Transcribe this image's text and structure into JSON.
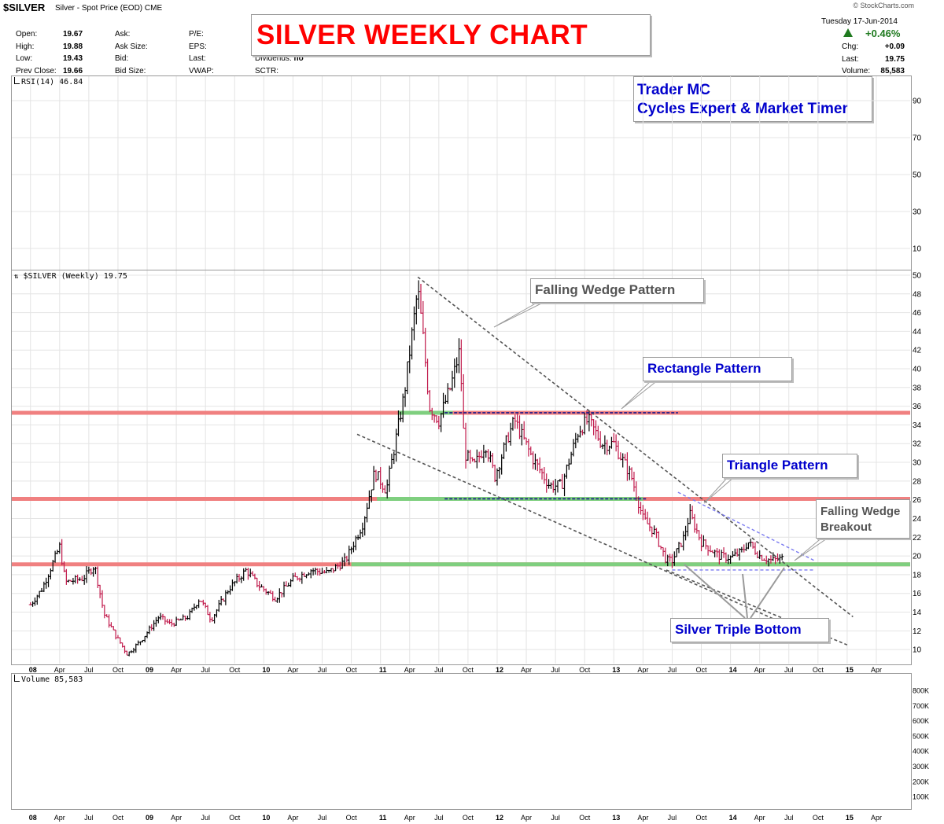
{
  "header": {
    "symbol": "$SILVER",
    "description": "Silver - Spot Price (EOD)",
    "exchange": "CME",
    "stats": [
      {
        "label": "Open:",
        "value": "19.67"
      },
      {
        "label": "High:",
        "value": "19.88"
      },
      {
        "label": "Low:",
        "value": "19.43"
      },
      {
        "label": "Prev Close:",
        "value": "19.66"
      }
    ],
    "stats2": [
      "Ask:",
      "Ask Size:",
      "Bid:",
      "Bid Size:"
    ],
    "stats3": [
      "P/E:",
      "EPS:",
      "Last:",
      "VWAP:"
    ],
    "stats4": [
      {
        "label": "Dividends:",
        "value": "no"
      },
      {
        "label": "SCTR:",
        "value": ""
      }
    ],
    "brand": "© StockCharts.com",
    "date": "Tuesday  17-Jun-2014",
    "change_pct": "+0.46%",
    "right_stats": [
      {
        "label": "Chg:",
        "value": "+0.09"
      },
      {
        "label": "Last:",
        "value": "19.75"
      },
      {
        "label": "Volume:",
        "value": "85,583"
      }
    ]
  },
  "big_title": "SILVER WEEKLY CHART",
  "author": {
    "line1": "Trader MC",
    "line2": "Cycles Expert & Market Timer"
  },
  "rsi_panel": {
    "label": "RSI(14) 46.84",
    "ticks": [
      "90",
      "70",
      "50",
      "30",
      "10"
    ]
  },
  "price_panel": {
    "label": "$SILVER (Weekly) 19.75"
  },
  "volume_panel": {
    "label": "Volume 85,583",
    "ticks": [
      "800K",
      "700K",
      "600K",
      "500K",
      "400K",
      "300K",
      "200K",
      "100K"
    ]
  },
  "annotations": {
    "falling_wedge": "Falling Wedge Pattern",
    "rectangle": "Rectangle Pattern",
    "triangle": "Triangle Pattern",
    "breakout_1": "Falling Wedge",
    "breakout_2": "Breakout",
    "triple_bottom": "Silver Triple Bottom"
  },
  "colors": {
    "resistance": "#f08080",
    "support": "#7fcf7f",
    "up_bar": "#000000",
    "down_bar": "#c0184a",
    "annotation_blue": "#0000cc",
    "title_red": "#ff0000"
  },
  "chart_data": {
    "type": "bar",
    "frequency": "weekly",
    "x_tick_labels": [
      "08",
      "Apr",
      "Jul",
      "Oct",
      "09",
      "Apr",
      "Jul",
      "Oct",
      "10",
      "Apr",
      "Jul",
      "Oct",
      "11",
      "Apr",
      "Jul",
      "Oct",
      "12",
      "Apr",
      "Jul",
      "Oct",
      "13",
      "Apr",
      "Jul",
      "Oct",
      "14",
      "Apr",
      "Jul",
      "Oct",
      "15",
      "Apr"
    ],
    "y_ticks": [
      10,
      12,
      14,
      16,
      18,
      20,
      22,
      24,
      26,
      28,
      30,
      32,
      34,
      36,
      38,
      40,
      42,
      44,
      46,
      48,
      50
    ],
    "ylim": [
      8.5,
      50.5
    ],
    "xlim": [
      "2007-11",
      "2015-06"
    ],
    "horizontal_levels": [
      {
        "name": "resistance",
        "value": 35.3
      },
      {
        "name": "resistance",
        "value": 26.1
      },
      {
        "name": "resistance",
        "value": 19.1
      },
      {
        "name": "support",
        "value": 35.3
      },
      {
        "name": "support",
        "value": 26.1
      },
      {
        "name": "support",
        "value": 19.1
      }
    ],
    "price_path": [
      [
        2008.0,
        14.8
      ],
      [
        2008.1,
        16.5
      ],
      [
        2008.2,
        19.5
      ],
      [
        2008.25,
        21.0
      ],
      [
        2008.3,
        17.2
      ],
      [
        2008.45,
        17.6
      ],
      [
        2008.55,
        19.0
      ],
      [
        2008.63,
        13.8
      ],
      [
        2008.73,
        11.5
      ],
      [
        2008.83,
        9.5
      ],
      [
        2008.95,
        11.0
      ],
      [
        2009.1,
        13.5
      ],
      [
        2009.2,
        12.7
      ],
      [
        2009.35,
        13.5
      ],
      [
        2009.45,
        15.5
      ],
      [
        2009.55,
        13.2
      ],
      [
        2009.7,
        16.5
      ],
      [
        2009.85,
        18.5
      ],
      [
        2009.95,
        16.9
      ],
      [
        2010.1,
        15.5
      ],
      [
        2010.25,
        17.5
      ],
      [
        2010.4,
        18.5
      ],
      [
        2010.55,
        18.2
      ],
      [
        2010.7,
        19.5
      ],
      [
        2010.85,
        23.5
      ],
      [
        2010.95,
        29.0
      ],
      [
        2011.05,
        27.0
      ],
      [
        2011.2,
        37.0
      ],
      [
        2011.32,
        48.5
      ],
      [
        2011.36,
        44.0
      ],
      [
        2011.42,
        36.0
      ],
      [
        2011.5,
        34.5
      ],
      [
        2011.6,
        38.0
      ],
      [
        2011.68,
        42.0
      ],
      [
        2011.72,
        31.0
      ],
      [
        2011.8,
        29.5
      ],
      [
        2011.9,
        32.0
      ],
      [
        2011.98,
        28.5
      ],
      [
        2012.1,
        33.0
      ],
      [
        2012.15,
        34.5
      ],
      [
        2012.3,
        30.5
      ],
      [
        2012.45,
        27.5
      ],
      [
        2012.55,
        27.5
      ],
      [
        2012.7,
        33.5
      ],
      [
        2012.78,
        34.5
      ],
      [
        2012.9,
        32.0
      ],
      [
        2013.0,
        32.0
      ],
      [
        2013.15,
        28.5
      ],
      [
        2013.25,
        24.0
      ],
      [
        2013.35,
        22.5
      ],
      [
        2013.45,
        19.5
      ],
      [
        2013.5,
        19.5
      ],
      [
        2013.6,
        22.0
      ],
      [
        2013.65,
        24.5
      ],
      [
        2013.75,
        21.5
      ],
      [
        2013.9,
        20.0
      ],
      [
        2014.0,
        19.8
      ],
      [
        2014.1,
        20.5
      ],
      [
        2014.15,
        21.5
      ],
      [
        2014.25,
        20.0
      ],
      [
        2014.35,
        19.5
      ],
      [
        2014.46,
        19.75
      ]
    ],
    "trendlines": [
      {
        "name": "falling-wedge-upper",
        "from": [
          2011.32,
          49.8
        ],
        "to": [
          2015.05,
          13.5
        ]
      },
      {
        "name": "falling-wedge-lower",
        "from": [
          2010.8,
          33.0
        ],
        "to": [
          2014.6,
          12.0
        ]
      },
      {
        "name": "falling-wedge-lower-ext",
        "from": [
          2013.45,
          18.5
        ],
        "to": [
          2015.0,
          10.5
        ]
      },
      {
        "name": "triangle-upper",
        "from": [
          2013.55,
          26.8
        ],
        "to": [
          2014.72,
          19.5
        ]
      },
      {
        "name": "triangle-lower",
        "from": [
          2013.5,
          18.5
        ],
        "to": [
          2014.72,
          18.5
        ]
      }
    ]
  }
}
